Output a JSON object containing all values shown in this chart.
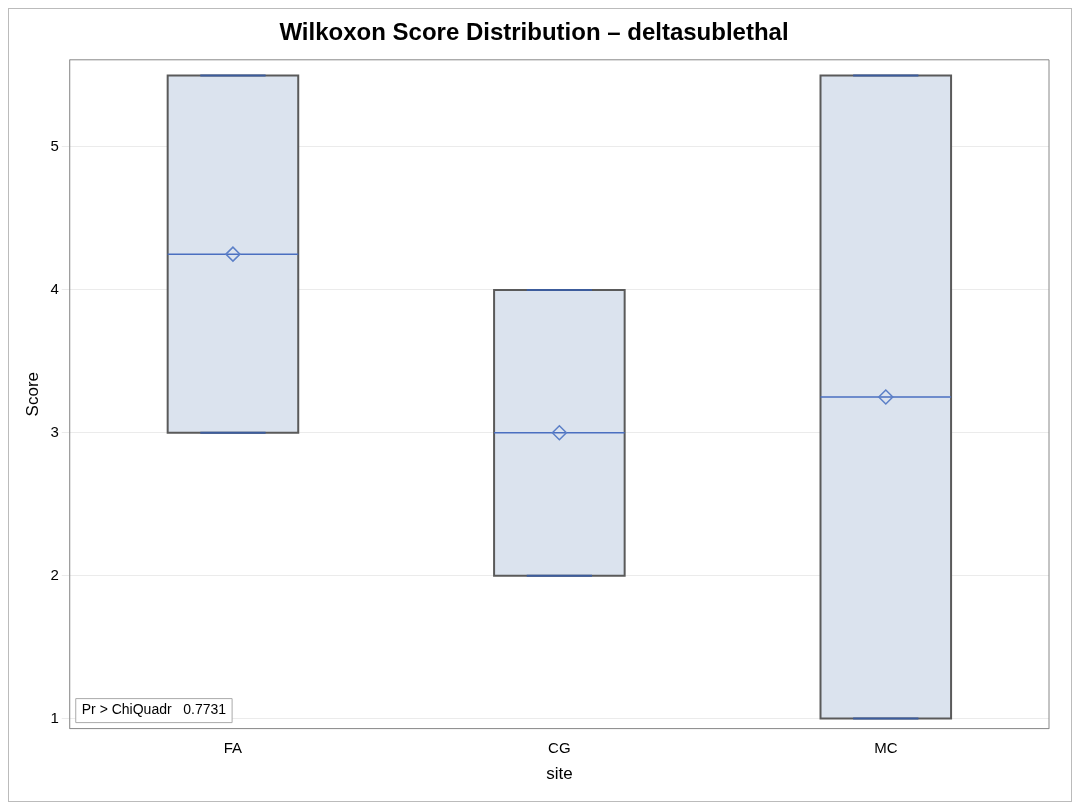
{
  "chart_data": {
    "type": "box",
    "title": "Wilkoxon Score Distribution – deltasublethal",
    "xlabel": "site",
    "ylabel": "Score",
    "categories": [
      "FA",
      "CG",
      "MC"
    ],
    "boxes": [
      {
        "low": 3,
        "q1": 3,
        "median": 4.25,
        "q3": 5.5,
        "high": 5.5,
        "mean": 4.25
      },
      {
        "low": 2,
        "q1": 2,
        "median": 3,
        "q3": 4,
        "high": 4,
        "mean": 3
      },
      {
        "low": 1,
        "q1": 1,
        "median": 3.25,
        "q3": 5.5,
        "high": 5.5,
        "mean": 3.25
      }
    ],
    "color": "#dbe3ee",
    "ylim": [
      0.93,
      5.61
    ],
    "yticks": [
      1,
      2,
      3,
      4,
      5
    ],
    "grid": "y",
    "legend": false,
    "marker": "diamond",
    "annotations": [
      "Pr > ChiQuadr   0.7731"
    ]
  }
}
